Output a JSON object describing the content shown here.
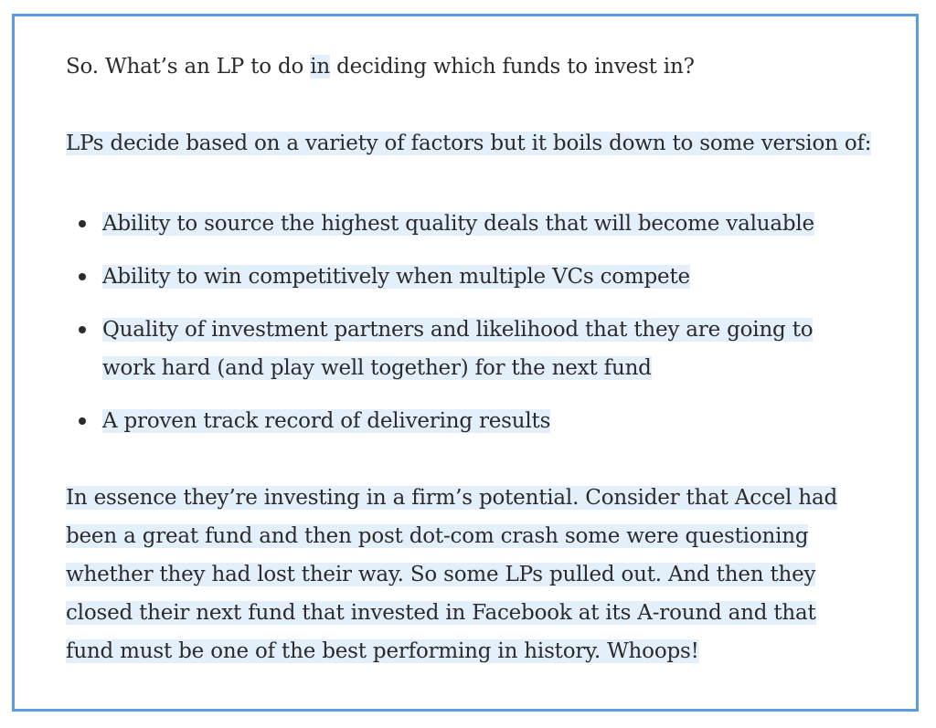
{
  "paragraphs": {
    "intro_before": "So. What’s an LP to do ",
    "intro_highlight": "in",
    "intro_after": " deciding which funds to invest in?",
    "factors_lead": "LPs decide based on a variety of factors but it boils down to some version of:"
  },
  "bullets": [
    {
      "lines": [
        "Ability to source the highest quality deals that will become valuable"
      ]
    },
    {
      "lines": [
        "Ability to win competitively when multiple VCs compete"
      ]
    },
    {
      "lines": [
        "Quality of investment partners and likelihood that they are going to",
        "work hard (and play well together) for the next fund"
      ]
    },
    {
      "lines": [
        "A proven track record of delivering results"
      ]
    }
  ],
  "closing_lines": [
    "In essence they’re investing in a firm’s potential. Consider that Accel had",
    "been a great fund and then post dot-com crash some were questioning",
    "whether they had lost their way. So some LPs pulled out. And then they",
    "closed their next fund that invested in Facebook at its A-round and that",
    "fund must be one of the best performing in history. Whoops!"
  ],
  "colors": {
    "border": "#5b9be0",
    "highlight": "#e3effb",
    "text": "#2b2b2b"
  }
}
